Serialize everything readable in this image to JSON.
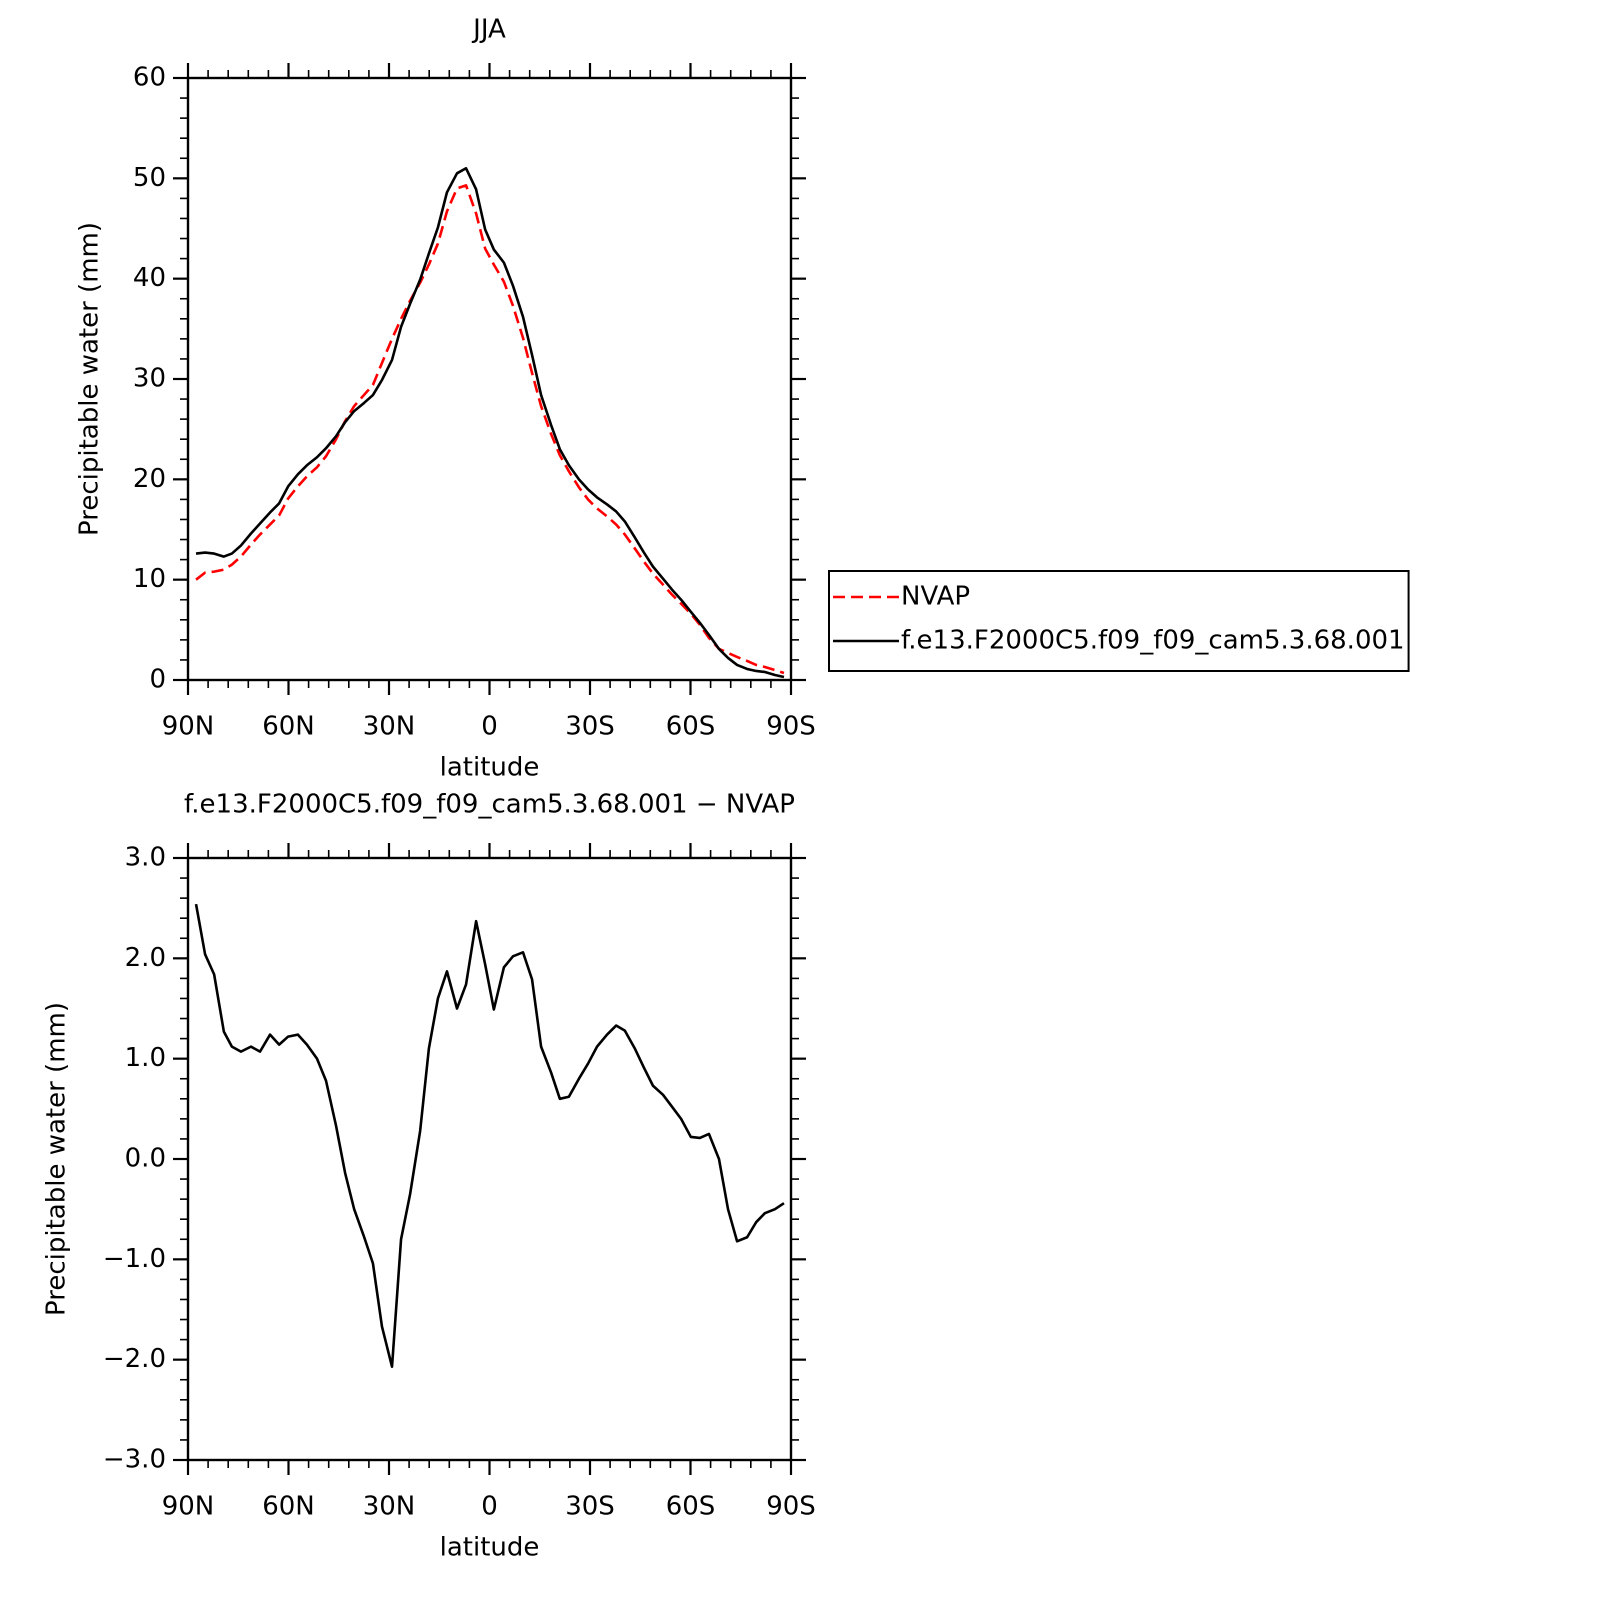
{
  "chart_data": [
    {
      "type": "line",
      "title": "JJA",
      "x_label": "latitude",
      "y_label": "Precipitable water (mm)",
      "x": [
        87.6,
        84.9,
        82.2,
        79.3,
        76.9,
        74.2,
        71.2,
        68.5,
        65.5,
        62.8,
        60.1,
        57.2,
        54.5,
        51.5,
        48.8,
        45.8,
        43.1,
        40.4,
        37.5,
        34.8,
        32.1,
        29.1,
        26.4,
        23.7,
        20.7,
        18.1,
        15.4,
        12.7,
        9.7,
        7.0,
        4.0,
        1.3,
        -1.3,
        -4.3,
        -7.0,
        -10.0,
        -12.7,
        -15.4,
        -18.4,
        -21.0,
        -23.7,
        -26.7,
        -29.4,
        -32.1,
        -35.1,
        -37.8,
        -40.4,
        -43.4,
        -46.1,
        -48.8,
        -51.8,
        -54.5,
        -57.2,
        -60.1,
        -62.8,
        -65.5,
        -68.5,
        -71.2,
        -73.9,
        -76.9,
        -79.6,
        -82.2,
        -85.2,
        -87.9
      ],
      "series": [
        {
          "name": "NVAP",
          "color": "#ff0000",
          "dashed": true,
          "values": [
            10.0,
            10.7,
            10.8,
            11.0,
            11.5,
            12.3,
            13.5,
            14.5,
            15.5,
            16.4,
            18.1,
            19.3,
            20.3,
            21.2,
            22.3,
            24.0,
            25.8,
            27.3,
            28.4,
            29.4,
            31.6,
            34.0,
            36.0,
            37.8,
            39.6,
            41.4,
            43.5,
            46.7,
            49.0,
            49.3,
            46.5,
            43.0,
            41.4,
            39.7,
            37.3,
            34.1,
            30.6,
            27.3,
            24.5,
            22.4,
            20.8,
            19.2,
            18.0,
            17.1,
            16.3,
            15.5,
            14.5,
            13.1,
            11.8,
            10.6,
            9.5,
            8.5,
            7.6,
            6.6,
            5.5,
            4.2,
            3.1,
            2.7,
            2.3,
            1.9,
            1.5,
            1.3,
            1.0,
            0.7
          ]
        },
        {
          "name": "f.e13.F2000C5.f09_f09_cam5.3.68.001",
          "color": "#000000",
          "dashed": false,
          "values": [
            12.6,
            12.7,
            12.6,
            12.3,
            12.6,
            13.4,
            14.6,
            15.6,
            16.7,
            17.6,
            19.3,
            20.5,
            21.4,
            22.2,
            23.1,
            24.3,
            25.7,
            26.8,
            27.6,
            28.4,
            29.9,
            31.9,
            35.2,
            37.5,
            39.9,
            42.5,
            45.1,
            48.6,
            50.5,
            51.0,
            48.9,
            44.9,
            42.9,
            41.6,
            39.3,
            36.2,
            32.4,
            28.4,
            25.4,
            23.0,
            21.4,
            20.0,
            19.0,
            18.2,
            17.5,
            16.8,
            15.8,
            14.2,
            12.7,
            11.3,
            10.1,
            9.0,
            8.0,
            6.8,
            5.7,
            4.5,
            3.1,
            2.2,
            1.5,
            1.1,
            0.9,
            0.8,
            0.5,
            0.3
          ]
        }
      ],
      "xlim": [
        90,
        -90
      ],
      "xticks": [
        {
          "value": 90,
          "label": "90N"
        },
        {
          "value": 60,
          "label": "60N"
        },
        {
          "value": 30,
          "label": "30N"
        },
        0,
        {
          "value": -30,
          "label": "30S"
        },
        {
          "value": -60,
          "label": "60S"
        },
        {
          "value": -90,
          "label": "90S"
        }
      ],
      "ylim": [
        0,
        60
      ],
      "yticks": [
        0,
        10,
        20,
        30,
        40,
        50,
        60
      ],
      "minor_divisions": 5,
      "legend": "right"
    },
    {
      "type": "line",
      "title": "f.e13.F2000C5.f09_f09_cam5.3.68.001 − NVAP",
      "x_label": "latitude",
      "y_label": "Precipitable water (mm)",
      "x": [
        87.6,
        84.9,
        82.2,
        79.3,
        76.9,
        74.2,
        71.2,
        68.5,
        65.5,
        62.8,
        60.1,
        57.2,
        54.5,
        51.5,
        48.8,
        45.8,
        43.1,
        40.4,
        37.5,
        34.8,
        32.1,
        29.1,
        26.4,
        23.7,
        20.7,
        18.1,
        15.4,
        12.7,
        9.7,
        7.0,
        4.0,
        1.3,
        -1.3,
        -4.3,
        -7.0,
        -10.0,
        -12.7,
        -15.4,
        -18.4,
        -21.0,
        -23.7,
        -26.7,
        -29.4,
        -32.1,
        -35.1,
        -37.8,
        -40.4,
        -43.4,
        -46.1,
        -48.8,
        -51.8,
        -54.5,
        -57.2,
        -60.1,
        -62.8,
        -65.5,
        -68.5,
        -71.2,
        -73.9,
        -76.9,
        -79.6,
        -82.2,
        -85.2,
        -87.9
      ],
      "series": [
        {
          "color": "#000000",
          "dashed": false,
          "values": [
            2.54,
            2.04,
            1.84,
            1.27,
            1.12,
            1.07,
            1.12,
            1.07,
            1.24,
            1.14,
            1.22,
            1.24,
            1.14,
            1.0,
            0.78,
            0.33,
            -0.14,
            -0.5,
            -0.77,
            -1.04,
            -1.67,
            -2.07,
            -0.8,
            -0.35,
            0.28,
            1.1,
            1.6,
            1.87,
            1.5,
            1.74,
            2.37,
            1.94,
            1.49,
            1.91,
            2.02,
            2.06,
            1.79,
            1.12,
            0.86,
            0.6,
            0.62,
            0.8,
            0.95,
            1.12,
            1.24,
            1.33,
            1.28,
            1.1,
            0.91,
            0.73,
            0.64,
            0.52,
            0.4,
            0.22,
            0.21,
            0.25,
            0.0,
            -0.5,
            -0.82,
            -0.78,
            -0.63,
            -0.54,
            -0.5,
            -0.44
          ]
        }
      ],
      "xlim": [
        90,
        -90
      ],
      "xticks": [
        {
          "value": 90,
          "label": "90N"
        },
        {
          "value": 60,
          "label": "60N"
        },
        {
          "value": 30,
          "label": "30N"
        },
        0,
        {
          "value": -30,
          "label": "30S"
        },
        {
          "value": -60,
          "label": "60S"
        },
        {
          "value": -90,
          "label": "90S"
        }
      ],
      "ylim": [
        -3,
        3
      ],
      "yticks": [
        {
          "value": -3,
          "label": "−3.0"
        },
        {
          "value": -2,
          "label": "−2.0"
        },
        {
          "value": -1,
          "label": "−1.0"
        },
        {
          "value": 0,
          "label": "0.0"
        },
        {
          "value": 1,
          "label": "1.0"
        },
        {
          "value": 2,
          "label": "2.0"
        },
        {
          "value": 3,
          "label": "3.0"
        }
      ],
      "minor_divisions": 5
    }
  ]
}
